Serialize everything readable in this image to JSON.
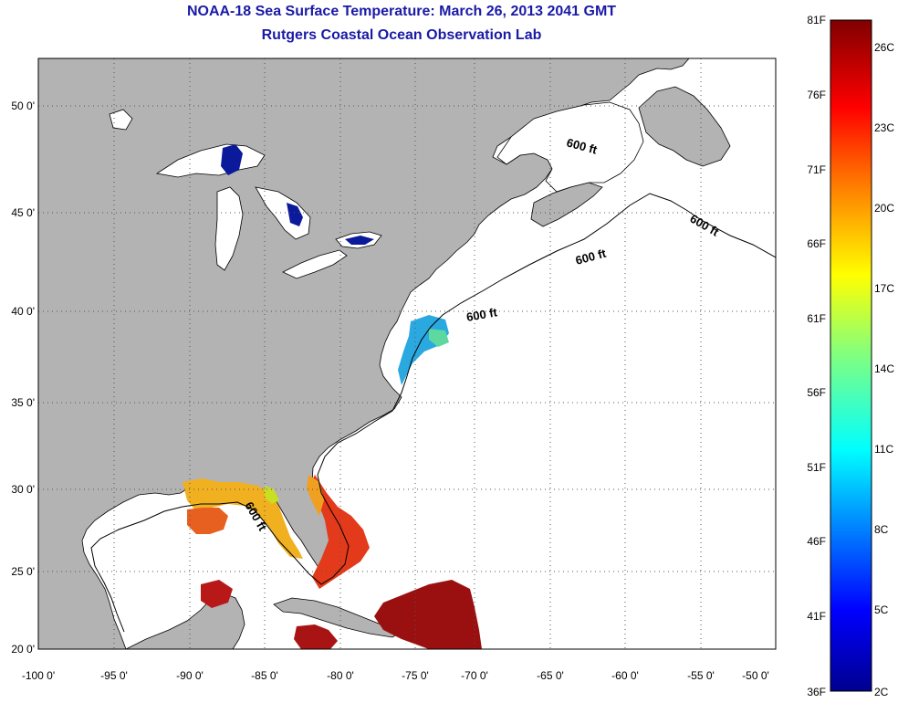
{
  "title": "NOAA-18 Sea Surface Temperature:  March 26, 2013 2041 GMT",
  "subtitle": "Rutgers Coastal Ocean Observation Lab",
  "lon_ticks": [
    "-100 0'",
    "-95 0'",
    "-90 0'",
    "-85 0'",
    "-80 0'",
    "-75 0'",
    "-70 0'",
    "-65 0'",
    "-60 0'",
    "-55 0'",
    "-50 0'"
  ],
  "lat_ticks": [
    "50 0'",
    "45 0'",
    "40 0'",
    "35 0'",
    "30 0'",
    "25 0'",
    "20 0'"
  ],
  "depth_label": "600 ft",
  "colorbar": {
    "fahrenheit": [
      "81F",
      "76F",
      "71F",
      "66F",
      "61F",
      "56F",
      "51F",
      "46F",
      "41F",
      "36F"
    ],
    "celsius": [
      "26C",
      "23C",
      "20C",
      "17C",
      "14C",
      "11C",
      "8C",
      "5C",
      "2C"
    ]
  },
  "colors": {
    "land": "#b3b3b3",
    "ocean": "#ffffff",
    "title": "#1a1aa6"
  }
}
